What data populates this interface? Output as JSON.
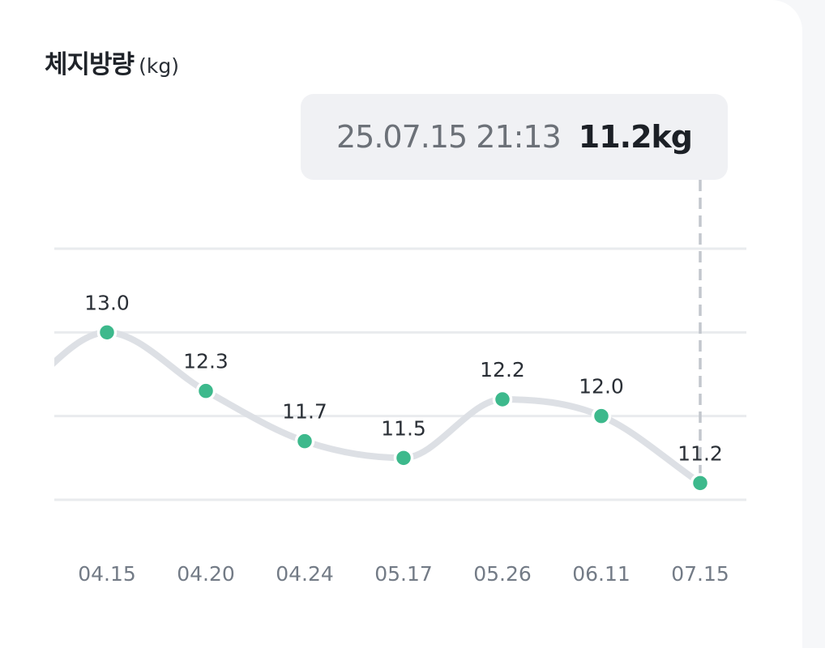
{
  "header": {
    "title": "체지방량",
    "unit": "(kg)"
  },
  "tooltip": {
    "datetime": "25.07.15 21:13",
    "value": "11.2kg"
  },
  "colors": {
    "point": "#3db98c",
    "line": "#dde0e5",
    "grid": "#e9ebee",
    "guide": "#c3c7cd",
    "label": "#2a2f36",
    "tick": "#737b86"
  },
  "chart_data": {
    "type": "line",
    "categories": [
      "04.15",
      "04.20",
      "04.24",
      "05.17",
      "05.26",
      "06.11",
      "07.15"
    ],
    "values": [
      13.0,
      12.3,
      11.7,
      11.5,
      12.2,
      12.0,
      11.2
    ],
    "labels": [
      "13.0",
      "12.3",
      "11.7",
      "11.5",
      "12.2",
      "12.0",
      "11.2"
    ],
    "selected_index": 6,
    "ylim": [
      11.0,
      14.0
    ],
    "grid": true
  }
}
